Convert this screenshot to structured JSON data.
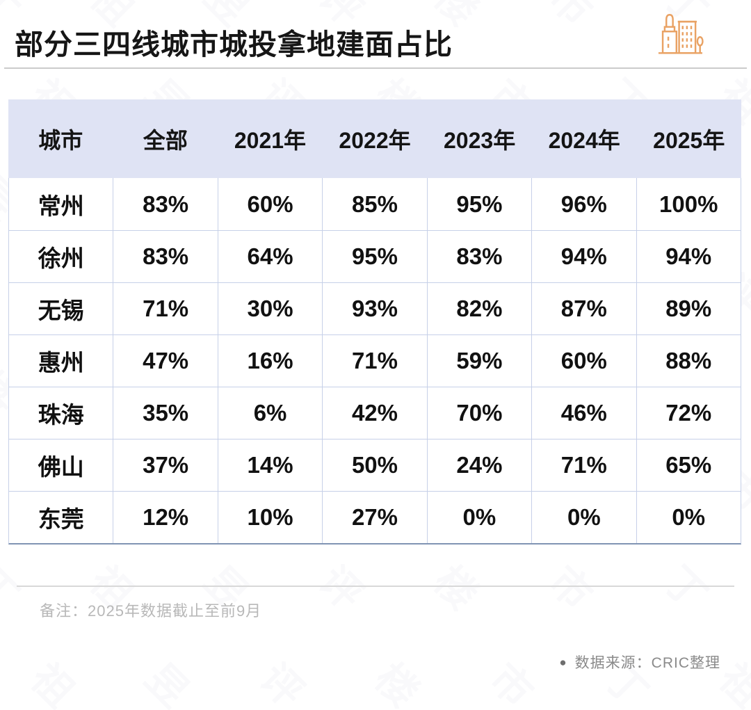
{
  "title": "部分三四线城市城投拿地建面占比",
  "chart_data": {
    "type": "table",
    "title": "部分三四线城市城投拿地建面占比",
    "columns": [
      "城市",
      "全部",
      "2021年",
      "2022年",
      "2023年",
      "2024年",
      "2025年"
    ],
    "rows": [
      [
        "常州",
        "83%",
        "60%",
        "85%",
        "95%",
        "96%",
        "100%"
      ],
      [
        "徐州",
        "83%",
        "64%",
        "95%",
        "83%",
        "94%",
        "94%"
      ],
      [
        "无锡",
        "71%",
        "30%",
        "93%",
        "82%",
        "87%",
        "89%"
      ],
      [
        "惠州",
        "47%",
        "16%",
        "71%",
        "59%",
        "60%",
        "88%"
      ],
      [
        "珠海",
        "35%",
        "6%",
        "42%",
        "70%",
        "46%",
        "72%"
      ],
      [
        "佛山",
        "37%",
        "14%",
        "50%",
        "24%",
        "71%",
        "65%"
      ],
      [
        "东莞",
        "12%",
        "10%",
        "27%",
        "0%",
        "0%",
        "0%"
      ]
    ],
    "note": "备注：2025年数据截止至前9月",
    "source": "数据来源：CRIC整理"
  },
  "note": "备注：2025年数据截止至前9月",
  "source_bullet": "●",
  "source": "数据来源：CRIC整理",
  "watermark_text": "丁祖昱评楼市",
  "icons": {
    "header_icon": "buildings-icon",
    "source_bullet_icon": "bullet-icon"
  },
  "colors": {
    "accent_orange": "#E9A264",
    "header_bg": "#DFE3F4",
    "cell_border": "#C6D0E8",
    "table_bottom_border": "#8094B3",
    "title_text": "#161616",
    "body_text": "#111111",
    "note_text": "#B8B8B8",
    "source_text": "#8A8A8A",
    "divider": "#CBCBCB"
  }
}
